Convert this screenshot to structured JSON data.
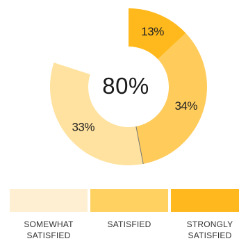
{
  "chart_data": {
    "type": "pie",
    "center_label": "80%",
    "slices": [
      {
        "label": "STRONGLY\nSATISFIED",
        "value": 13,
        "value_label": "13%",
        "color": "#FFB91C"
      },
      {
        "label": "SATISFIED",
        "value": 34,
        "value_label": "34%",
        "color": "#FFCC5C"
      },
      {
        "label": "SOMEWHAT\nSATISFIED",
        "value": 33,
        "value_label": "33%",
        "color": "#FFE29F"
      }
    ],
    "legend": [
      {
        "label": "SOMEWHAT\nSATISFIED",
        "color": "#FFEFD2"
      },
      {
        "label": "SATISFIED",
        "color": "#FFD160"
      },
      {
        "label": "STRONGLY\nSATISFIED",
        "color": "#FFB81E"
      }
    ],
    "separator_color": "#777777"
  }
}
